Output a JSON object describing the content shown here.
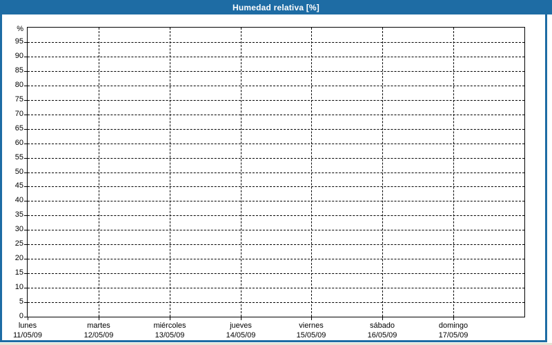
{
  "window": {
    "title": "Humedad relativa [%]"
  },
  "colors": {
    "frame": "#1E6CA4",
    "title_text": "#FFFFFF",
    "background": "#FFFFFF",
    "plot_background": "#FFFFFF",
    "grid_line": "#000000",
    "axis_line": "#000000",
    "label_text": "#000000",
    "page_edge": "#E7E3D4"
  },
  "chart_data": {
    "type": "line",
    "title": "Humedad relativa [%]",
    "ylabel": "%",
    "ylim": [
      0,
      100
    ],
    "ytick_step": 5,
    "yticks": [
      0,
      5,
      10,
      15,
      20,
      25,
      30,
      35,
      40,
      45,
      50,
      55,
      60,
      65,
      70,
      75,
      80,
      85,
      90,
      95
    ],
    "categories": [
      {
        "day": "lunes",
        "date": "11/05/09"
      },
      {
        "day": "martes",
        "date": "12/05/09"
      },
      {
        "day": "miércoles",
        "date": "13/05/09"
      },
      {
        "day": "jueves",
        "date": "14/05/09"
      },
      {
        "day": "viernes",
        "date": "15/05/09"
      },
      {
        "day": "sábado",
        "date": "16/05/09"
      },
      {
        "day": "domingo",
        "date": "17/05/09"
      }
    ],
    "series": [],
    "grid": "dashed",
    "legend": "none"
  }
}
